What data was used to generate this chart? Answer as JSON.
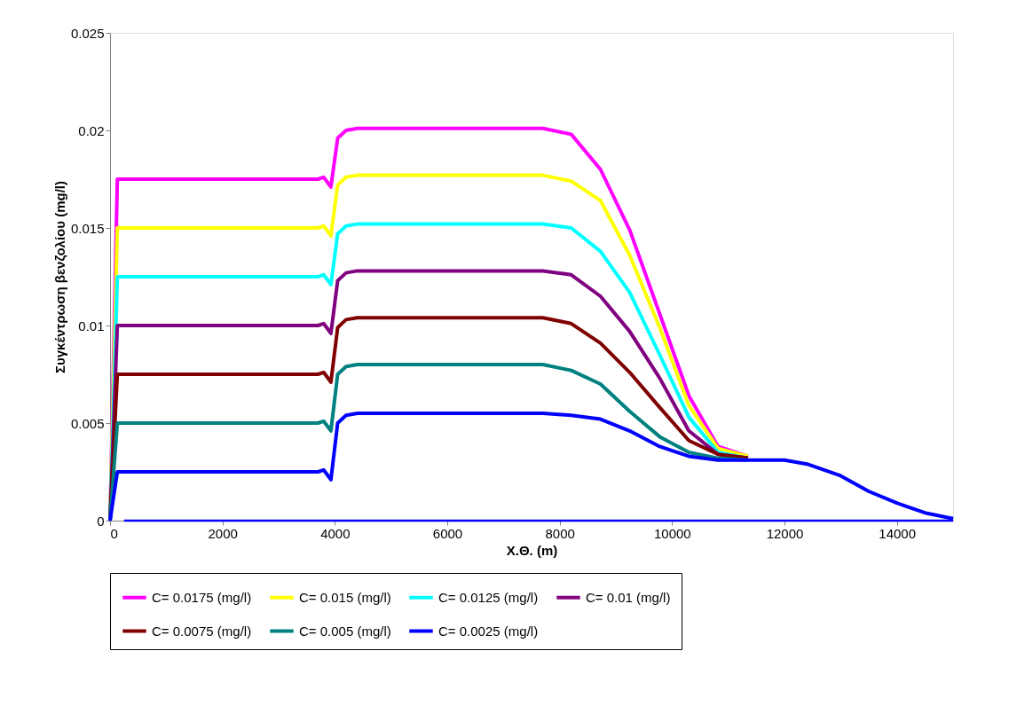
{
  "chart_data": {
    "type": "line",
    "xlabel": "Χ.Θ. (m)",
    "ylabel": "Συγκέντρωση βενζολίου (mg/l)",
    "x": [
      0,
      130,
      3700,
      3800,
      3930,
      4050,
      4200,
      4400,
      7700,
      8205,
      8726,
      9245,
      9780,
      10299,
      10818,
      11352,
      12000,
      12400,
      13000,
      13500,
      14000,
      14500,
      15000
    ],
    "xlim": [
      0,
      15000
    ],
    "xticks": [
      0,
      2000,
      4000,
      6000,
      8000,
      10000,
      12000,
      14000
    ],
    "ylim": [
      0,
      0.025
    ],
    "yticks": [
      0,
      0.005,
      0.01,
      0.015,
      0.02,
      0.025
    ],
    "grid": false,
    "legend": "bottom",
    "line_style": "solid",
    "marker": "none",
    "series": [
      {
        "name": "C= 0.0175 (mg/l)",
        "color": "#ff00ff",
        "values": [
          0,
          0.0175,
          0.0175,
          0.0176,
          0.0171,
          0.0196,
          0.02,
          0.0201,
          0.0201,
          0.0198,
          0.018,
          0.0149,
          0.0106,
          0.0064,
          0.0038,
          0.0033,
          null,
          null,
          null,
          null,
          null,
          null,
          null
        ]
      },
      {
        "name": "C= 0.015 (mg/l)",
        "color": "#ffff00",
        "values": [
          0,
          0.015,
          0.015,
          0.0151,
          0.0146,
          0.0172,
          0.0176,
          0.0177,
          0.0177,
          0.0174,
          0.0164,
          0.0136,
          0.0099,
          0.0059,
          0.0037,
          0.0033,
          null,
          null,
          null,
          null,
          null,
          null,
          null
        ]
      },
      {
        "name": "C= 0.0125 (mg/l)",
        "color": "#00ffff",
        "values": [
          0,
          0.0125,
          0.0125,
          0.0126,
          0.0121,
          0.0147,
          0.0151,
          0.0152,
          0.0152,
          0.015,
          0.0138,
          0.0117,
          0.0085,
          0.0053,
          0.0035,
          0.0032,
          null,
          null,
          null,
          null,
          null,
          null,
          null
        ]
      },
      {
        "name": "C= 0.01 (mg/l)",
        "color": "#800080",
        "values": [
          0,
          0.01,
          0.01,
          0.0101,
          0.0096,
          0.0123,
          0.0127,
          0.0128,
          0.0128,
          0.0126,
          0.0115,
          0.0097,
          0.0073,
          0.0046,
          0.0034,
          0.0032,
          null,
          null,
          null,
          null,
          null,
          null,
          null
        ]
      },
      {
        "name": "C= 0.0075 (mg/l)",
        "color": "#800000",
        "values": [
          0,
          0.0075,
          0.0075,
          0.0076,
          0.0071,
          0.0099,
          0.0103,
          0.0104,
          0.0104,
          0.0101,
          0.0091,
          0.0076,
          0.0058,
          0.0041,
          0.0034,
          0.0032,
          null,
          null,
          null,
          null,
          null,
          null,
          null
        ]
      },
      {
        "name": "C= 0.005 (mg/l)",
        "color": "#008080",
        "values": [
          0,
          0.005,
          0.005,
          0.0051,
          0.0046,
          0.0075,
          0.0079,
          0.008,
          0.008,
          0.0077,
          0.007,
          0.0056,
          0.0043,
          0.0035,
          0.0032,
          0.0031,
          null,
          null,
          null,
          null,
          null,
          null,
          null
        ]
      },
      {
        "name": "C= 0.0025 (mg/l)",
        "color": "#0000ff",
        "values": [
          0,
          0.0025,
          0.0025,
          0.0026,
          0.0021,
          0.005,
          0.0054,
          0.0055,
          0.0055,
          0.0054,
          0.0052,
          0.0046,
          0.0038,
          0.0033,
          0.0031,
          0.0031,
          0.0031,
          0.0029,
          0.0023,
          0.0015,
          0.0009,
          0.0004,
          0.0001
        ]
      },
      {
        "color": "#0000ff",
        "x": [
          250,
          15000
        ],
        "values": [
          0,
          0
        ]
      }
    ]
  }
}
